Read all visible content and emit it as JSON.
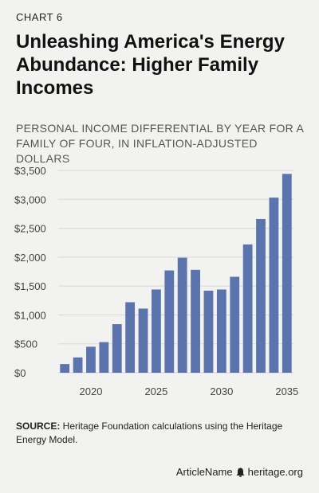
{
  "header": {
    "chart_label": "CHART 6",
    "title": "Unleashing America's Energy Abundance: Higher Family Incomes",
    "subtitle": "PERSONAL INCOME DIFFERENTIAL BY YEAR FOR A FAMILY OF FOUR, IN INFLATION-ADJUSTED DOLLARS"
  },
  "source": {
    "label": "SOURCE:",
    "text": " Heritage Foundation calculations using the Heritage Energy Model."
  },
  "footer": {
    "article_name": "ArticleName",
    "site": "heritage.org"
  },
  "colors": {
    "bar": "#5b74ad",
    "grid": "#d7d7d5",
    "background": "#f2f2f0"
  },
  "icons": {
    "footer_logo": "heritage-bell-icon"
  },
  "chart_data": {
    "type": "bar",
    "title": "",
    "xlabel": "",
    "ylabel": "",
    "categories": [
      2018,
      2019,
      2020,
      2021,
      2022,
      2023,
      2024,
      2025,
      2026,
      2027,
      2028,
      2029,
      2030,
      2031,
      2032,
      2033,
      2034,
      2035
    ],
    "values": [
      150,
      265,
      450,
      530,
      840,
      1220,
      1110,
      1440,
      1770,
      1990,
      1780,
      1420,
      1440,
      1660,
      2220,
      2660,
      3030,
      3440
    ],
    "ylim": [
      0,
      3500
    ],
    "yticks": [
      0,
      500,
      1000,
      1500,
      2000,
      2500,
      3000,
      3500
    ],
    "ytick_labels": [
      "$0",
      "$500",
      "$1,000",
      "$1,500",
      "$2,000",
      "$2,500",
      "$3,000",
      "$3,500"
    ],
    "xticks": [
      2020,
      2025,
      2030,
      2035
    ],
    "xtick_labels": [
      "2020",
      "2025",
      "2030",
      "2035"
    ],
    "grid": true,
    "legend": "none"
  }
}
